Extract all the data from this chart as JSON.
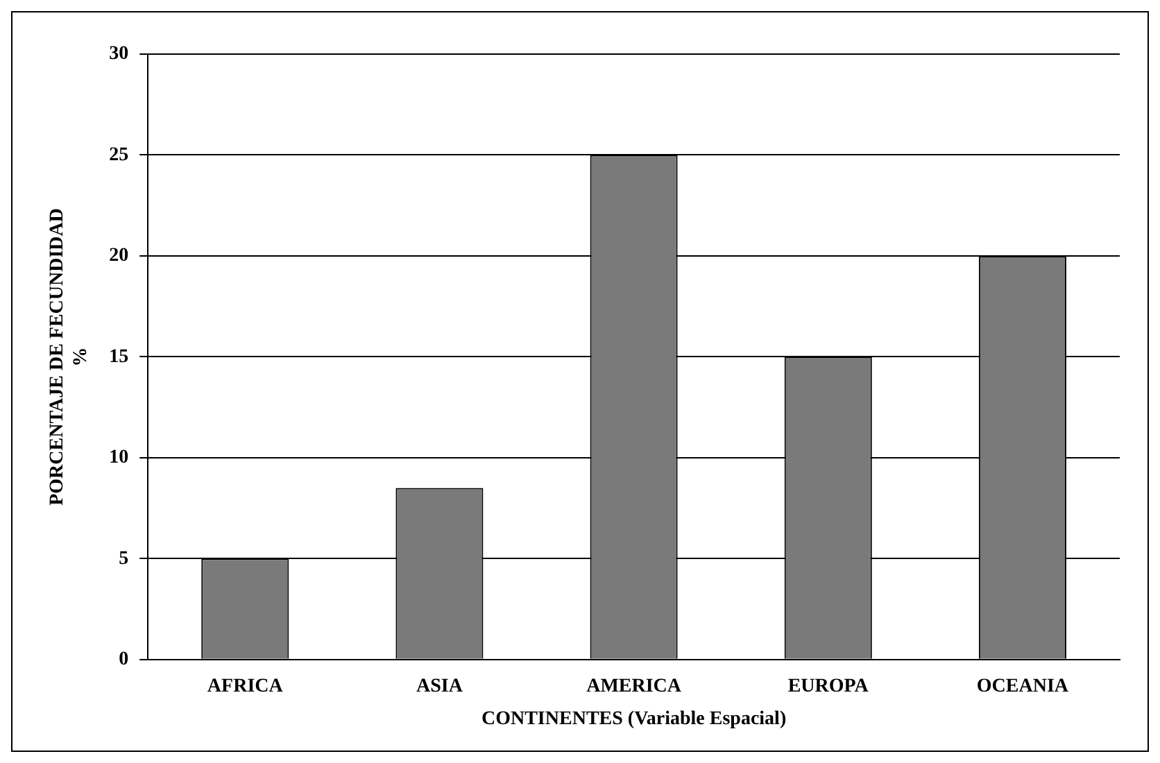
{
  "chart_data": {
    "type": "bar",
    "xlabel": "CONTINENTES (Variable Espacial)",
    "ylabel": "PORCENTAJE DE FECUNDIDAD\n%",
    "categories": [
      "AFRICA",
      "ASIA",
      "AMERICA",
      "EUROPA",
      "OCEANIA"
    ],
    "values": [
      5,
      8.5,
      25,
      15,
      20
    ],
    "color": "#7a7a7a",
    "ylim": [
      0,
      30
    ],
    "yticks": [
      0,
      5,
      10,
      15,
      20,
      25,
      30
    ],
    "grid": "y"
  }
}
